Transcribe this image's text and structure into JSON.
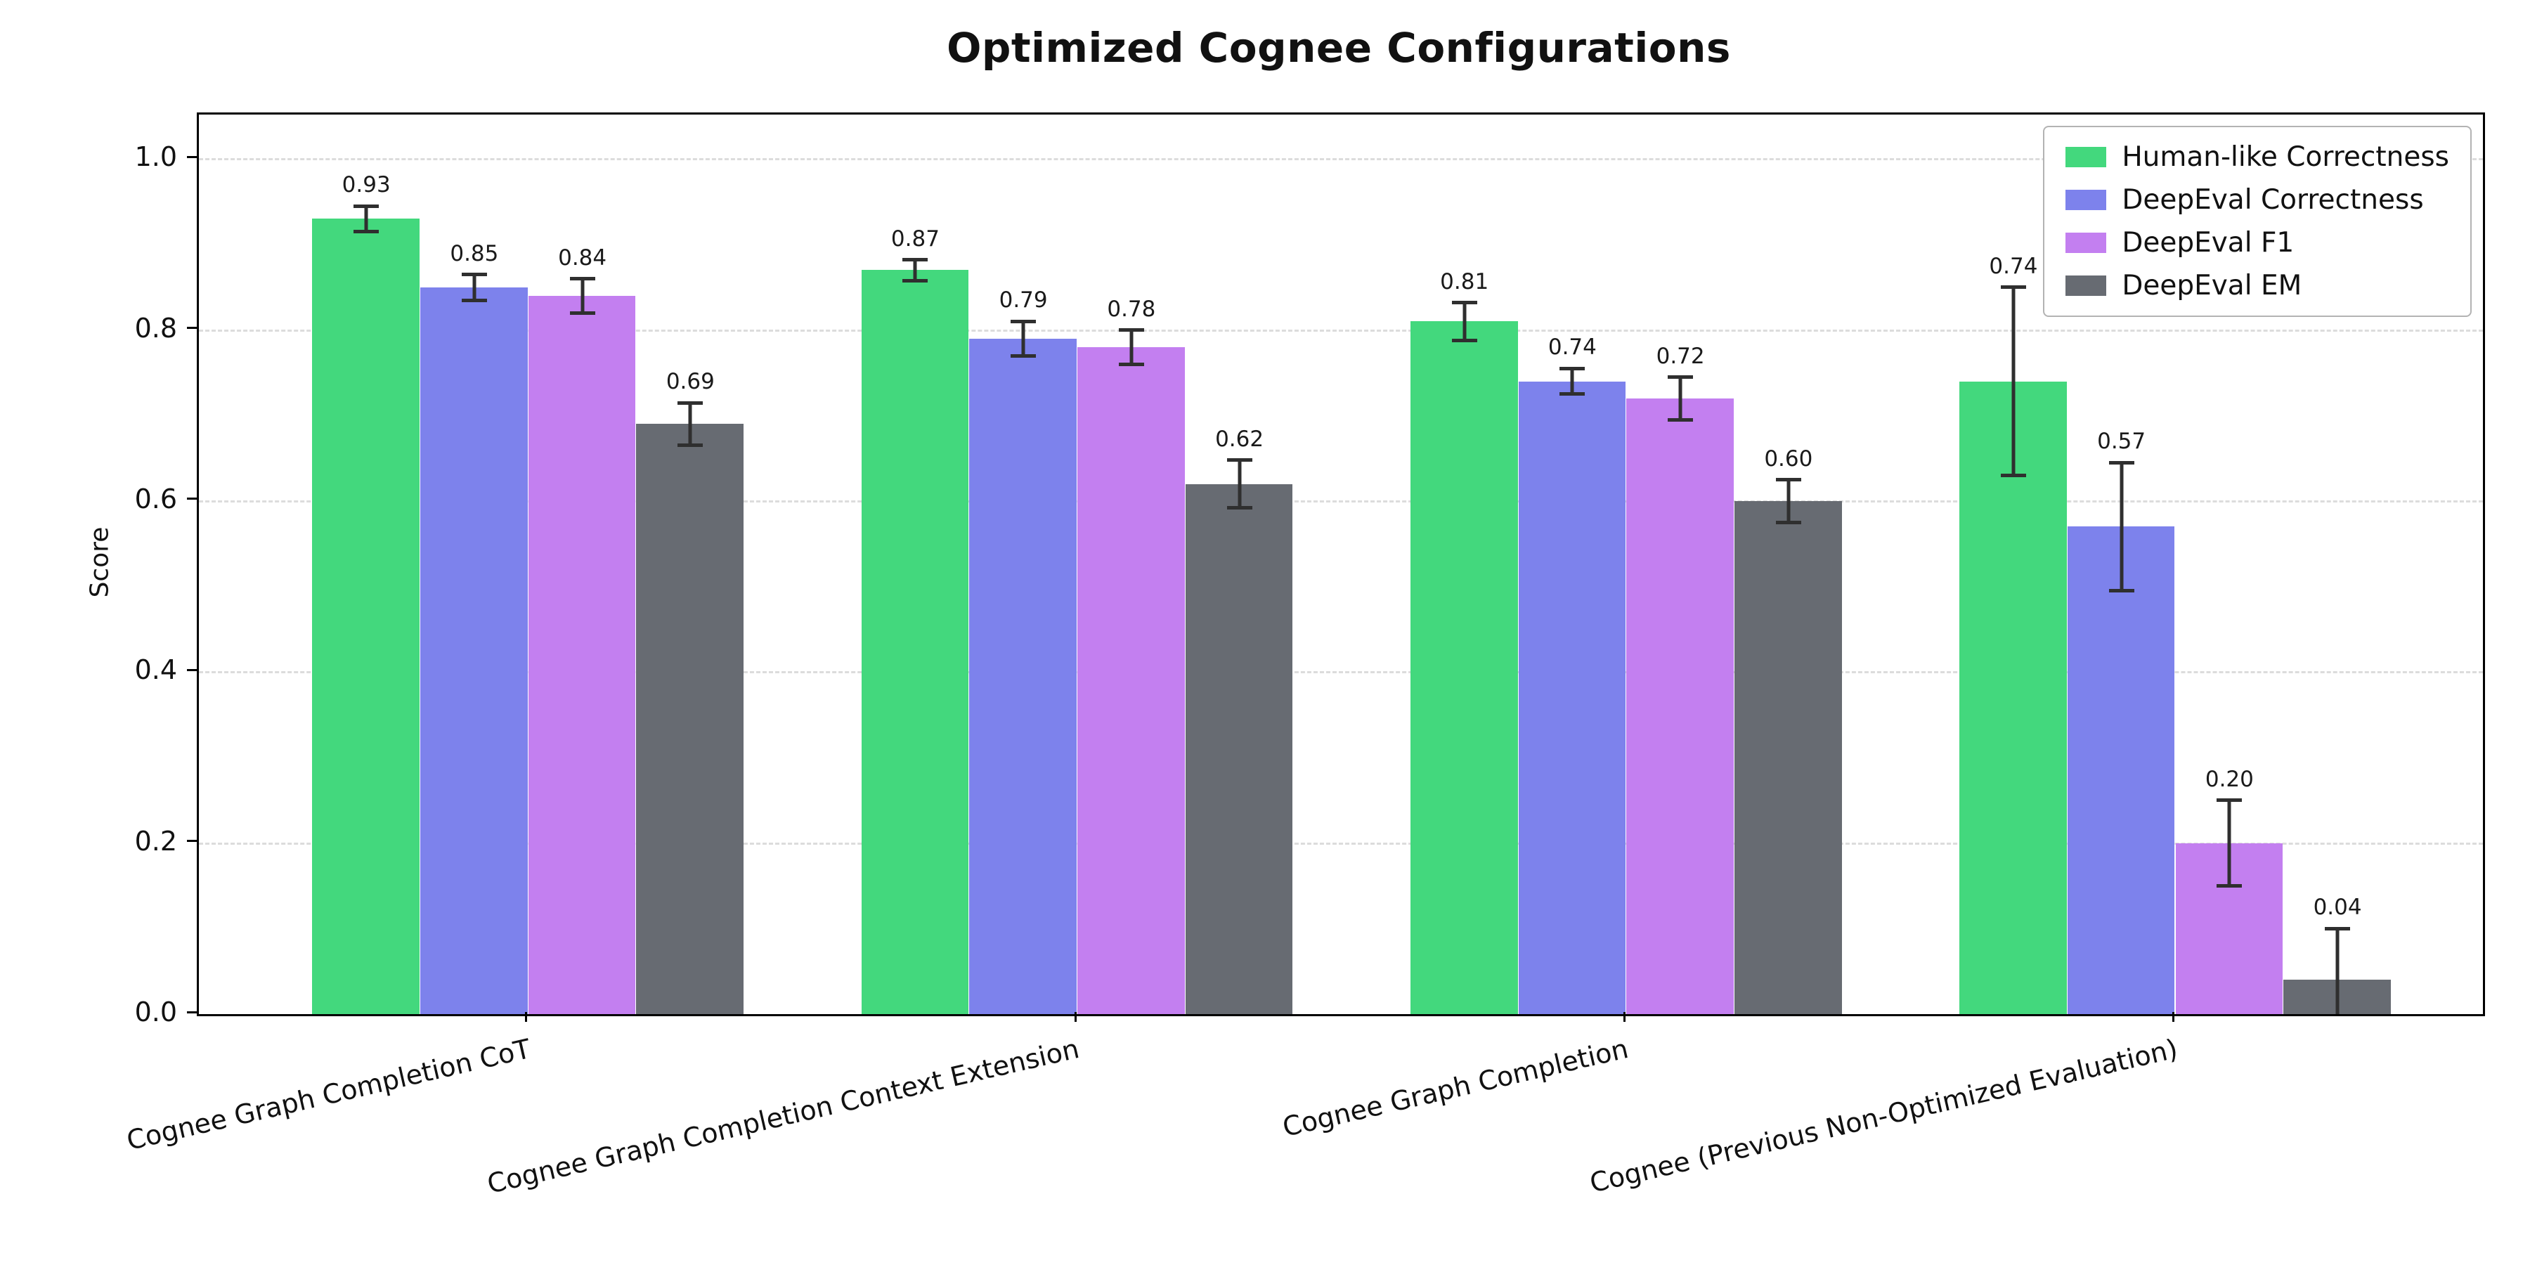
{
  "chart_data": {
    "type": "bar",
    "title": "Optimized Cognee Configurations",
    "xlabel": "",
    "ylabel": "Score",
    "ylim": [
      0.0,
      1.052
    ],
    "yticks": [
      0.0,
      0.2,
      0.4,
      0.6,
      0.8,
      1.0
    ],
    "grid": "horizontal-dashed",
    "legend_position": "upper-right",
    "error_bars": true,
    "categories": [
      "Cognee Graph Completion CoT",
      "Cognee Graph Completion Context Extension",
      "Cognee Graph Completion",
      "Cognee (Previous Non-Optimized Evaluation)"
    ],
    "series": [
      {
        "name": "Human-like Correctness",
        "color": "#43d87d",
        "values": [
          0.93,
          0.87,
          0.81,
          0.74
        ],
        "errors": [
          0.015,
          0.012,
          0.022,
          0.11
        ]
      },
      {
        "name": "DeepEval Correctness",
        "color": "#7d82ec",
        "values": [
          0.85,
          0.79,
          0.74,
          0.57
        ],
        "errors": [
          0.015,
          0.02,
          0.015,
          0.075
        ]
      },
      {
        "name": "DeepEval F1",
        "color": "#c37ff0",
        "values": [
          0.84,
          0.78,
          0.72,
          0.2
        ],
        "errors": [
          0.02,
          0.02,
          0.025,
          0.05
        ]
      },
      {
        "name": "DeepEval EM",
        "color": "#676b72",
        "values": [
          0.69,
          0.62,
          0.6,
          0.04
        ],
        "errors": [
          0.025,
          0.028,
          0.025,
          0.06
        ]
      }
    ]
  }
}
